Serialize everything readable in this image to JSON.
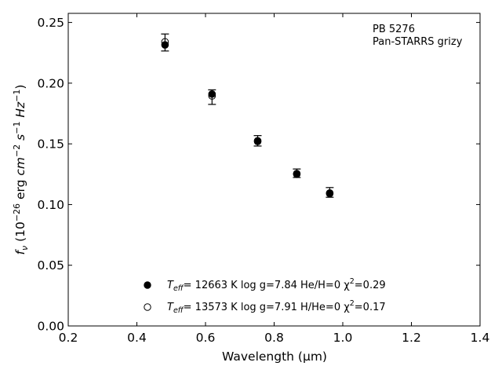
{
  "chart_data": {
    "type": "scatter",
    "annotation": [
      "PB 5276",
      "Pan-STARRS grizy"
    ],
    "xlabel": "Wavelength (μm)",
    "ylabel": "f_ν (10^-26 erg cm^-2 s^-1 Hz^-1)",
    "xlim": [
      0.2,
      1.4
    ],
    "ylim": [
      0.0,
      0.2575
    ],
    "xticks": [
      "0.2",
      "0.4",
      "0.6",
      "0.8",
      "1.0",
      "1.2",
      "1.4"
    ],
    "xtick_values": [
      0.2,
      0.4,
      0.6,
      0.8,
      1.0,
      1.2,
      1.4
    ],
    "yticks": [
      "0.00",
      "0.05",
      "0.10",
      "0.15",
      "0.20",
      "0.25"
    ],
    "ytick_values": [
      0.0,
      0.05,
      0.1,
      0.15,
      0.2,
      0.25
    ],
    "observed": {
      "x": [
        0.482,
        0.619,
        0.752,
        0.866,
        0.962
      ],
      "y": [
        0.2335,
        0.1885,
        0.1525,
        0.1258,
        0.11
      ],
      "yerr": [
        0.007,
        0.006,
        0.0043,
        0.0035,
        0.004
      ]
    },
    "series": [
      {
        "label_prefix": "T",
        "label_sub": "eff",
        "label_body": "= 12663 K  log g=7.84  He/H=0  χ",
        "label_sup": "2",
        "label_tail": "=0.29",
        "marker": "filled",
        "x": [
          0.482,
          0.619,
          0.752,
          0.866,
          0.962
        ],
        "y": [
          0.2315,
          0.191,
          0.1525,
          0.125,
          0.109
        ]
      },
      {
        "label_prefix": "T",
        "label_sub": "eff",
        "label_body": "= 13573 K  log g=7.91  H/He=0  χ",
        "label_sup": "2",
        "label_tail": "=0.17",
        "marker": "open",
        "x": [
          0.482,
          0.619,
          0.752,
          0.866,
          0.962
        ],
        "y": [
          0.234,
          0.1895,
          0.152,
          0.1255,
          0.1095
        ]
      }
    ],
    "colors": {
      "marker": "#000000",
      "background": "#ffffff"
    },
    "grid": false,
    "legend_position": "lower-center"
  }
}
